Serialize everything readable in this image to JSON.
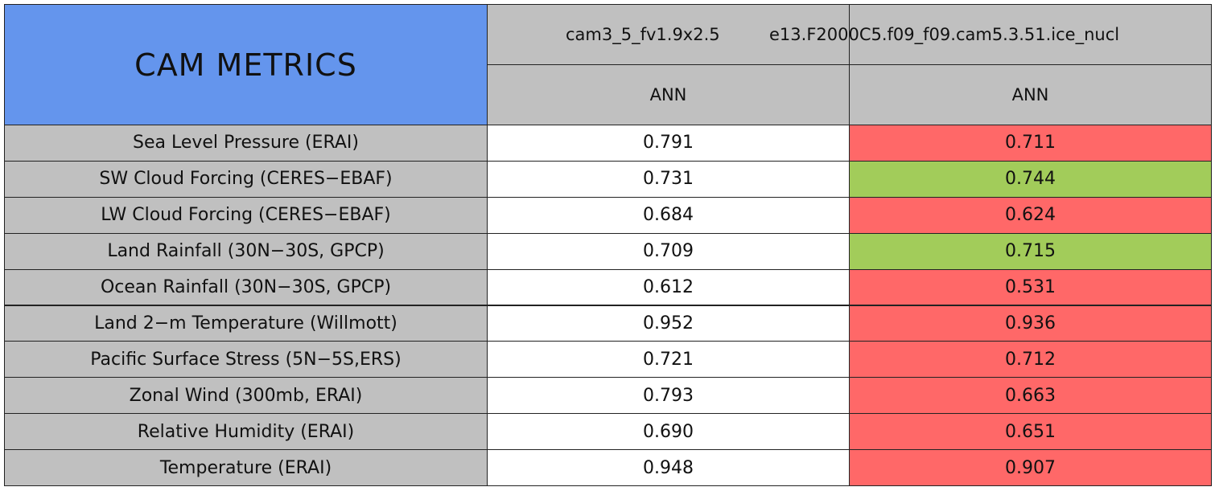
{
  "header": {
    "title": "CAM METRICS",
    "runs": [
      "cam3_5_fv1.9x2.5",
      "e13.F2000C5.f09_f09.cam5.3.51.ice_nucl"
    ],
    "periods": [
      "ANN",
      "ANN"
    ]
  },
  "table": {
    "rows": [
      {
        "label": "Sea Level Pressure (ERAI)",
        "values": [
          "0.791",
          "0.711"
        ],
        "colors": [
          "#ffffff",
          "#ff6868"
        ]
      },
      {
        "label": "SW Cloud Forcing (CERES−EBAF)",
        "values": [
          "0.731",
          "0.744"
        ],
        "colors": [
          "#ffffff",
          "#a2cc5a"
        ]
      },
      {
        "label": "LW Cloud Forcing (CERES−EBAF)",
        "values": [
          "0.684",
          "0.624"
        ],
        "colors": [
          "#ffffff",
          "#ff6868"
        ]
      },
      {
        "label": "Land Rainfall (30N−30S, GPCP)",
        "values": [
          "0.709",
          "0.715"
        ],
        "colors": [
          "#ffffff",
          "#a2cc5a"
        ]
      },
      {
        "label": "Ocean Rainfall (30N−30S, GPCP)",
        "values": [
          "0.612",
          "0.531"
        ],
        "colors": [
          "#ffffff",
          "#ff6868"
        ]
      },
      {
        "label": "Land 2−m Temperature (Willmott)",
        "values": [
          "0.952",
          "0.936"
        ],
        "colors": [
          "#ffffff",
          "#ff6868"
        ]
      },
      {
        "label": "Pacific Surface Stress (5N−5S,ERS)",
        "values": [
          "0.721",
          "0.712"
        ],
        "colors": [
          "#ffffff",
          "#ff6868"
        ]
      },
      {
        "label": "Zonal Wind (300mb, ERAI)",
        "values": [
          "0.793",
          "0.663"
        ],
        "colors": [
          "#ffffff",
          "#ff6868"
        ]
      },
      {
        "label": "Relative Humidity (ERAI)",
        "values": [
          "0.690",
          "0.651"
        ],
        "colors": [
          "#ffffff",
          "#ff6868"
        ]
      },
      {
        "label": "Temperature (ERAI)",
        "values": [
          "0.948",
          "0.907"
        ],
        "colors": [
          "#ffffff",
          "#ff6868"
        ]
      }
    ]
  }
}
